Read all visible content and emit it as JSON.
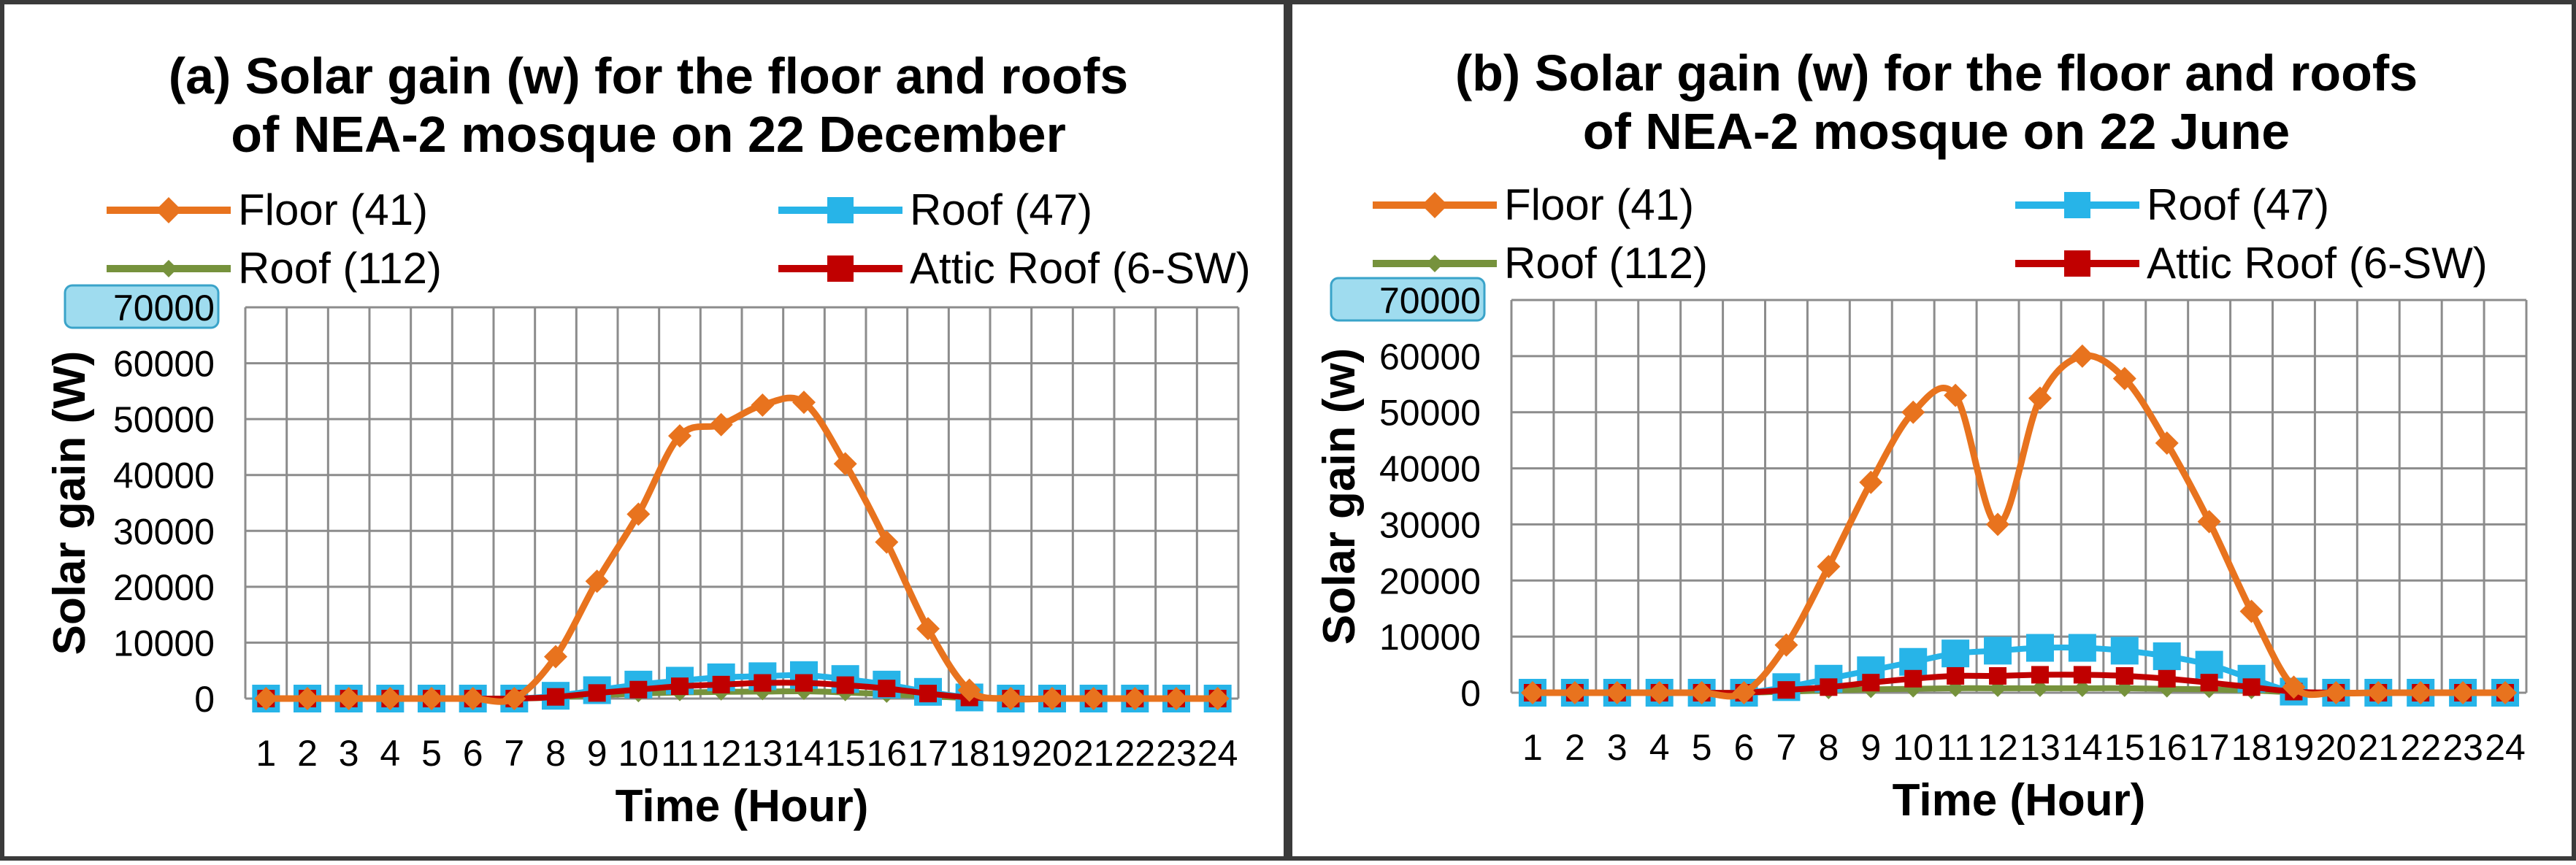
{
  "chart_data": [
    {
      "type": "line",
      "title_lines": [
        "(a) Solar gain (w) for the floor and roofs",
        "of NEA-2 mosque on 22 December"
      ],
      "xlabel": "Time (Hour)",
      "ylabel": "Solar gain (W)",
      "ylim": [
        0,
        70000
      ],
      "yticks": [
        0,
        10000,
        20000,
        30000,
        40000,
        50000,
        60000,
        70000
      ],
      "x": [
        1,
        2,
        3,
        4,
        5,
        6,
        7,
        8,
        9,
        10,
        11,
        12,
        13,
        14,
        15,
        16,
        17,
        18,
        19,
        20,
        21,
        22,
        23,
        24
      ],
      "grid": true,
      "legend_position": "top",
      "series": [
        {
          "name": "Floor (41)",
          "color": "#e8731e",
          "marker": "diamond",
          "values": [
            0,
            0,
            0,
            0,
            0,
            0,
            0,
            7500,
            21000,
            33000,
            47000,
            49000,
            52500,
            53000,
            42000,
            28000,
            12500,
            1500,
            0,
            0,
            0,
            0,
            0,
            0
          ]
        },
        {
          "name": "Roof (47)",
          "color": "#27b4e8",
          "marker": "square",
          "values": [
            0,
            0,
            0,
            0,
            0,
            0,
            0,
            500,
            1500,
            2500,
            3200,
            3800,
            4000,
            4200,
            3500,
            2500,
            1200,
            200,
            0,
            0,
            0,
            0,
            0,
            0
          ]
        },
        {
          "name": "Roof (112)",
          "color": "#76923c",
          "marker": "diamond",
          "values": [
            0,
            0,
            0,
            0,
            0,
            0,
            0,
            200,
            600,
            900,
            1100,
            1200,
            1250,
            1300,
            1100,
            800,
            400,
            100,
            0,
            0,
            0,
            0,
            0,
            0
          ]
        },
        {
          "name": "Attic Roof (6-SW)",
          "color": "#c00000",
          "marker": "square",
          "values": [
            0,
            0,
            0,
            0,
            0,
            0,
            0,
            300,
            1000,
            1600,
            2200,
            2500,
            2800,
            2800,
            2400,
            1800,
            900,
            200,
            0,
            0,
            0,
            0,
            0,
            0
          ]
        }
      ]
    },
    {
      "type": "line",
      "title_lines": [
        "(b) Solar gain (w) for the floor and roofs",
        "of NEA-2 mosque on 22 June"
      ],
      "xlabel": "Time (Hour)",
      "ylabel": "Solar gain (w)",
      "ylim": [
        0,
        70000
      ],
      "yticks": [
        0,
        10000,
        20000,
        30000,
        40000,
        50000,
        60000,
        70000
      ],
      "x": [
        1,
        2,
        3,
        4,
        5,
        6,
        7,
        8,
        9,
        10,
        11,
        12,
        13,
        14,
        15,
        16,
        17,
        18,
        19,
        20,
        21,
        22,
        23,
        24
      ],
      "grid": true,
      "legend_position": "top",
      "series": [
        {
          "name": "Floor (41)",
          "color": "#e8731e",
          "marker": "diamond",
          "values": [
            0,
            0,
            0,
            0,
            0,
            0,
            8500,
            22500,
            37500,
            50000,
            53000,
            30000,
            52500,
            60000,
            56000,
            44500,
            30500,
            14500,
            1000,
            0,
            0,
            0,
            0,
            0
          ]
        },
        {
          "name": "Roof (47)",
          "color": "#27b4e8",
          "marker": "square",
          "values": [
            0,
            0,
            0,
            0,
            0,
            0,
            1000,
            2500,
            4000,
            5500,
            7000,
            7500,
            8000,
            8000,
            7500,
            6500,
            5000,
            2500,
            200,
            0,
            0,
            0,
            0,
            0
          ]
        },
        {
          "name": "Roof (112)",
          "color": "#76923c",
          "marker": "diamond",
          "values": [
            0,
            0,
            0,
            0,
            0,
            0,
            200,
            400,
            600,
            700,
            800,
            800,
            800,
            800,
            800,
            700,
            600,
            400,
            100,
            0,
            0,
            0,
            0,
            0
          ]
        },
        {
          "name": "Attic Roof (6-SW)",
          "color": "#c00000",
          "marker": "square",
          "values": [
            0,
            0,
            0,
            0,
            0,
            0,
            500,
            1000,
            1800,
            2500,
            3000,
            3000,
            3200,
            3200,
            3000,
            2500,
            1800,
            1000,
            200,
            0,
            0,
            0,
            0,
            0
          ]
        }
      ]
    }
  ]
}
